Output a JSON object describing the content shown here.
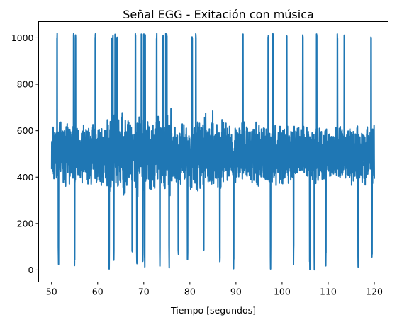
{
  "chart_data": {
    "type": "line",
    "title": "Señal EGG - Exitación con música",
    "xlabel": "Tiempo [segundos]",
    "ylabel": "",
    "xlim": [
      47.2,
      123.0
    ],
    "ylim": [
      -52,
      1070
    ],
    "xticks": [
      50,
      60,
      70,
      80,
      90,
      100,
      110,
      120
    ],
    "yticks": [
      0,
      200,
      400,
      600,
      800,
      1000
    ],
    "grid": false,
    "legend": "none",
    "series": [
      {
        "color": "#1f77b4",
        "line_width": 2,
        "x_range": [
          50,
          120
        ],
        "baseline_mean": 500,
        "typical_range": [
          380,
          640
        ],
        "spikes_high": [
          51.2,
          54.8,
          55.2,
          59.5,
          63.0,
          63.3,
          63.8,
          64.2,
          68.2,
          69.5,
          70.0,
          70.3,
          72.8,
          74.2,
          74.8,
          75.0,
          80.5,
          81.3,
          86.5,
          91.5,
          97.0,
          98.0,
          101.0,
          104.5,
          107.5,
          112.0,
          113.5,
          119.3
        ],
        "spikes_low": [
          51.5,
          55.0,
          62.5,
          63.5,
          67.5,
          68.5,
          69.8,
          70.2,
          73.5,
          75.5,
          77.5,
          79.5,
          83.0,
          86.5,
          89.5,
          97.5,
          102.5,
          106.0,
          107.0,
          109.5,
          116.5,
          119.5
        ]
      }
    ]
  }
}
